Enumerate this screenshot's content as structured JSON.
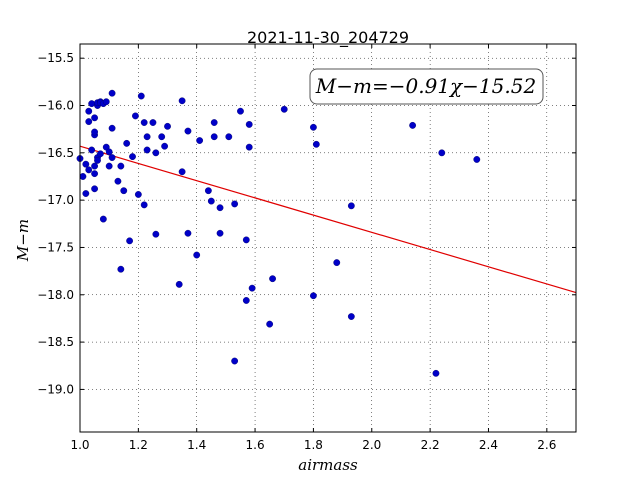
{
  "chart_data": {
    "type": "scatter",
    "title": "2021-11-30_204729",
    "xlabel": "airmass",
    "ylabel": "M−m",
    "xlim": [
      1.0,
      2.7
    ],
    "ylim": [
      -19.45,
      -15.35
    ],
    "y_inverted": true,
    "grid": true,
    "xticks": [
      1.0,
      1.2,
      1.4,
      1.6,
      1.8,
      2.0,
      2.2,
      2.4,
      2.6
    ],
    "xtick_labels": [
      "1.0",
      "1.2",
      "1.4",
      "1.6",
      "1.8",
      "2.0",
      "2.2",
      "2.4",
      "2.6"
    ],
    "yticks": [
      -15.5,
      -16.0,
      -16.5,
      -17.0,
      -17.5,
      -18.0,
      -18.5,
      -19.0
    ],
    "ytick_labels": [
      "−15.5",
      "−16.0",
      "−16.5",
      "−17.0",
      "−17.5",
      "−18.0",
      "−18.5",
      "−19.0"
    ],
    "fit": {
      "label": "M−m=−0.91χ−15.52",
      "slope": -0.91,
      "intercept": -15.52,
      "color": "#e00000"
    },
    "point_color": "#0000c8",
    "points": [
      {
        "x": 1.0,
        "y": -16.56
      },
      {
        "x": 1.01,
        "y": -16.75
      },
      {
        "x": 1.02,
        "y": -16.93
      },
      {
        "x": 1.02,
        "y": -16.62
      },
      {
        "x": 1.03,
        "y": -16.68
      },
      {
        "x": 1.03,
        "y": -16.06
      },
      {
        "x": 1.03,
        "y": -16.17
      },
      {
        "x": 1.04,
        "y": -15.98
      },
      {
        "x": 1.04,
        "y": -16.47
      },
      {
        "x": 1.05,
        "y": -16.31
      },
      {
        "x": 1.05,
        "y": -16.28
      },
      {
        "x": 1.05,
        "y": -16.72
      },
      {
        "x": 1.05,
        "y": -16.88
      },
      {
        "x": 1.05,
        "y": -16.64
      },
      {
        "x": 1.05,
        "y": -16.13
      },
      {
        "x": 1.06,
        "y": -16.0
      },
      {
        "x": 1.06,
        "y": -15.97
      },
      {
        "x": 1.06,
        "y": -16.55
      },
      {
        "x": 1.06,
        "y": -16.58
      },
      {
        "x": 1.07,
        "y": -15.96
      },
      {
        "x": 1.07,
        "y": -16.51
      },
      {
        "x": 1.07,
        "y": -15.97
      },
      {
        "x": 1.08,
        "y": -15.98
      },
      {
        "x": 1.08,
        "y": -17.2
      },
      {
        "x": 1.09,
        "y": -15.96
      },
      {
        "x": 1.09,
        "y": -16.44
      },
      {
        "x": 1.1,
        "y": -16.49
      },
      {
        "x": 1.1,
        "y": -16.64
      },
      {
        "x": 1.11,
        "y": -16.55
      },
      {
        "x": 1.11,
        "y": -15.87
      },
      {
        "x": 1.11,
        "y": -16.24
      },
      {
        "x": 1.13,
        "y": -16.8
      },
      {
        "x": 1.14,
        "y": -16.64
      },
      {
        "x": 1.14,
        "y": -17.73
      },
      {
        "x": 1.15,
        "y": -16.9
      },
      {
        "x": 1.16,
        "y": -16.4
      },
      {
        "x": 1.17,
        "y": -17.43
      },
      {
        "x": 1.18,
        "y": -16.54
      },
      {
        "x": 1.19,
        "y": -16.11
      },
      {
        "x": 1.2,
        "y": -16.94
      },
      {
        "x": 1.21,
        "y": -15.9
      },
      {
        "x": 1.22,
        "y": -16.18
      },
      {
        "x": 1.22,
        "y": -17.05
      },
      {
        "x": 1.23,
        "y": -16.47
      },
      {
        "x": 1.23,
        "y": -16.33
      },
      {
        "x": 1.25,
        "y": -16.18
      },
      {
        "x": 1.26,
        "y": -16.5
      },
      {
        "x": 1.26,
        "y": -17.36
      },
      {
        "x": 1.28,
        "y": -16.33
      },
      {
        "x": 1.29,
        "y": -16.43
      },
      {
        "x": 1.3,
        "y": -16.22
      },
      {
        "x": 1.34,
        "y": -17.89
      },
      {
        "x": 1.35,
        "y": -15.95
      },
      {
        "x": 1.35,
        "y": -16.7
      },
      {
        "x": 1.37,
        "y": -16.27
      },
      {
        "x": 1.37,
        "y": -17.35
      },
      {
        "x": 1.4,
        "y": -17.58
      },
      {
        "x": 1.41,
        "y": -16.37
      },
      {
        "x": 1.44,
        "y": -16.9
      },
      {
        "x": 1.45,
        "y": -17.01
      },
      {
        "x": 1.46,
        "y": -16.18
      },
      {
        "x": 1.46,
        "y": -16.33
      },
      {
        "x": 1.48,
        "y": -17.08
      },
      {
        "x": 1.48,
        "y": -17.35
      },
      {
        "x": 1.51,
        "y": -16.33
      },
      {
        "x": 1.53,
        "y": -17.04
      },
      {
        "x": 1.53,
        "y": -18.7
      },
      {
        "x": 1.55,
        "y": -16.06
      },
      {
        "x": 1.57,
        "y": -17.42
      },
      {
        "x": 1.57,
        "y": -18.06
      },
      {
        "x": 1.58,
        "y": -16.2
      },
      {
        "x": 1.58,
        "y": -16.44
      },
      {
        "x": 1.59,
        "y": -17.93
      },
      {
        "x": 1.65,
        "y": -18.31
      },
      {
        "x": 1.66,
        "y": -17.83
      },
      {
        "x": 1.7,
        "y": -16.04
      },
      {
        "x": 1.8,
        "y": -16.23
      },
      {
        "x": 1.8,
        "y": -18.01
      },
      {
        "x": 1.81,
        "y": -16.41
      },
      {
        "x": 1.88,
        "y": -17.66
      },
      {
        "x": 1.93,
        "y": -17.06
      },
      {
        "x": 1.93,
        "y": -18.23
      },
      {
        "x": 2.14,
        "y": -16.21
      },
      {
        "x": 2.22,
        "y": -18.83
      },
      {
        "x": 2.24,
        "y": -16.5
      },
      {
        "x": 2.36,
        "y": -16.57
      }
    ]
  }
}
